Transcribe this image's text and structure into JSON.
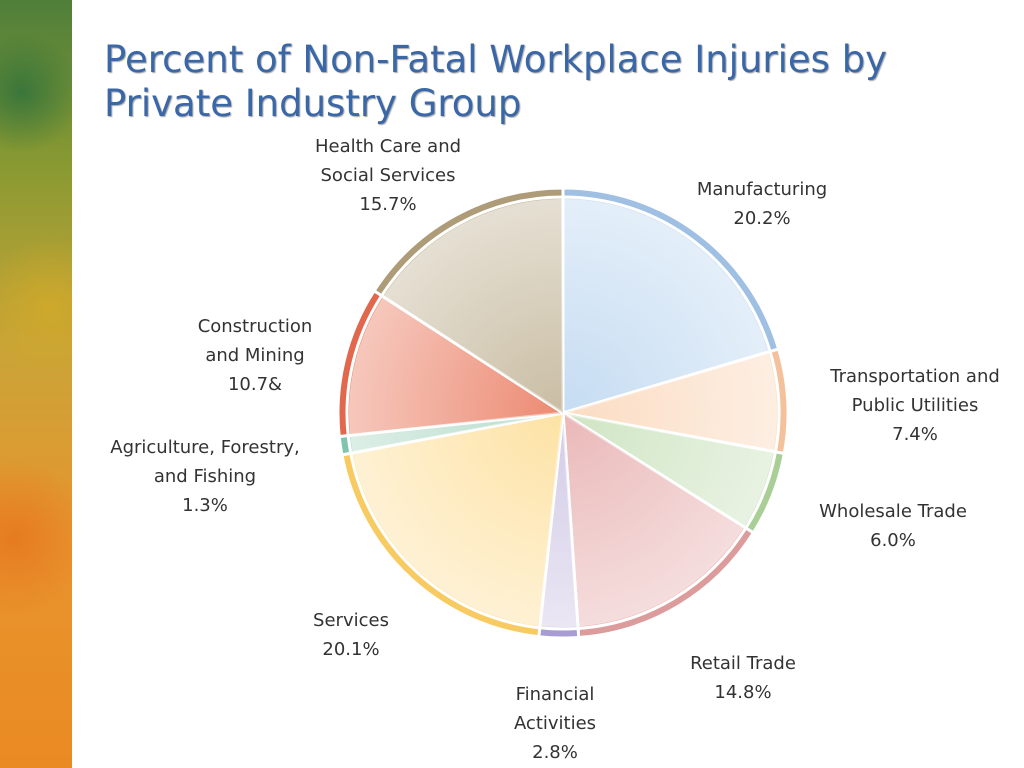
{
  "title_lines": [
    "Percent of Non-Fatal Workplace Injuries by",
    "Private Industry Group"
  ],
  "chart_data": {
    "type": "pie",
    "title": "Percent of Non-Fatal Workplace Injuries by Private Industry Group",
    "slices": [
      {
        "name": "Manufacturing",
        "label_lines": [
          "Manufacturing"
        ],
        "value_label": "20.2%",
        "value": 20.2,
        "color": "#c5dcf2",
        "rim": "#9fbfe3"
      },
      {
        "name": "Transportation and Public Utilities",
        "label_lines": [
          "Transportation and",
          "Public Utilities"
        ],
        "value_label": "7.4%",
        "value": 7.4,
        "color": "#fbdcc2",
        "rim": "#f3c29c"
      },
      {
        "name": "Wholesale Trade",
        "label_lines": [
          "Wholesale Trade"
        ],
        "value_label": "6.0%",
        "value": 6.0,
        "color": "#cfe5c3",
        "rim": "#a9cf96"
      },
      {
        "name": "Retail Trade",
        "label_lines": [
          "Retail Trade"
        ],
        "value_label": "14.8%",
        "value": 14.8,
        "color": "#eab8b8",
        "rim": "#dc9c9c"
      },
      {
        "name": "Financial Activities",
        "label_lines": [
          "Financial",
          "Activities"
        ],
        "value_label": "2.8%",
        "value": 2.8,
        "color": "#d3cbe7",
        "rim": "#a99bd3"
      },
      {
        "name": "Services",
        "label_lines": [
          "Services"
        ],
        "value_label": "20.1%",
        "value": 20.1,
        "color": "#fde2a4",
        "rim": "#f8cb62"
      },
      {
        "name": "Agriculture, Forestry, and Fishing",
        "label_lines": [
          "Agriculture, Forestry,",
          "and Fishing"
        ],
        "value_label": "1.3%",
        "value": 1.3,
        "color": "#b6dccc",
        "rim": "#7fc4ad"
      },
      {
        "name": "Construction and Mining",
        "label_lines": [
          "Construction",
          "and Mining"
        ],
        "value_label": "10.7&",
        "value": 10.7,
        "color": "#ec8a72",
        "rim": "#e2684d"
      },
      {
        "name": "Health Care and Social Services",
        "label_lines": [
          "Health Care and",
          "Social Services"
        ],
        "value_label": "15.7%",
        "value": 15.7,
        "color": "#c9bda3",
        "rim": "#ad9c77"
      }
    ]
  }
}
